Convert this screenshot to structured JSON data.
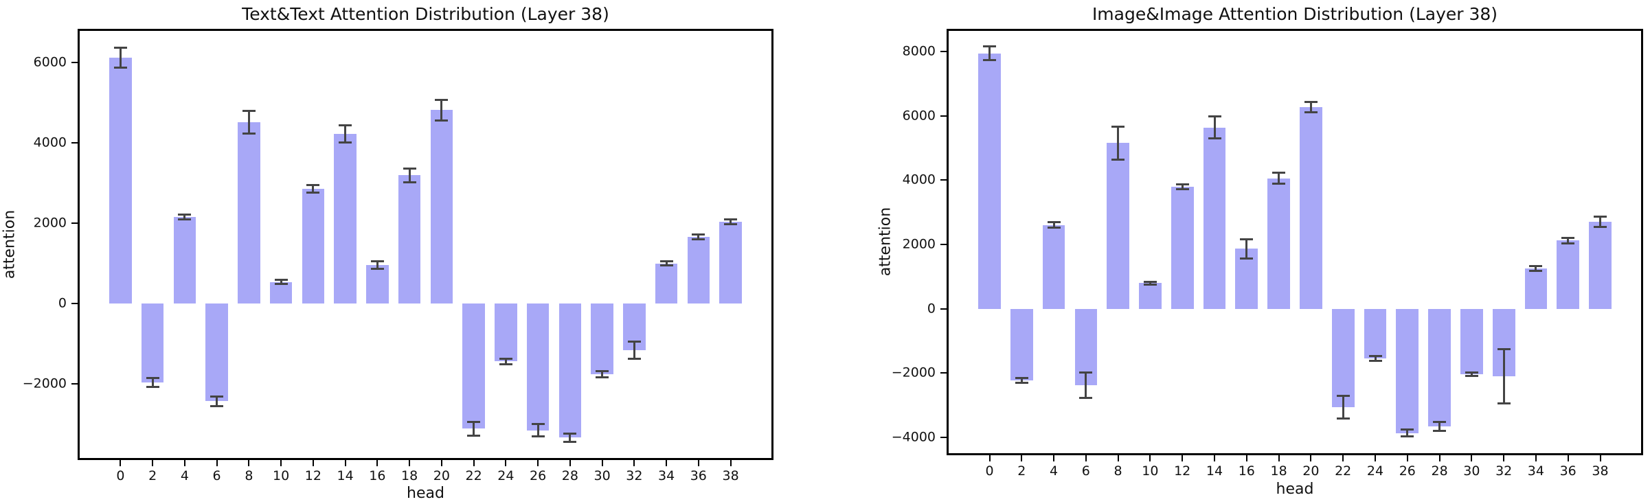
{
  "figure": {
    "background": "#ffffff",
    "bar_color": "#a8a8f7",
    "error_color": "#444444",
    "axis_color": "#000000"
  },
  "chart_data": [
    {
      "type": "bar",
      "title": "Text&Text Attention Distribution (Layer 38)",
      "xlabel": "head",
      "ylabel": "attention",
      "categories": [
        0,
        2,
        4,
        6,
        8,
        10,
        12,
        14,
        16,
        18,
        20,
        22,
        24,
        26,
        28,
        30,
        32,
        34,
        36,
        38
      ],
      "values": [
        6110,
        -1960,
        2160,
        -2430,
        4510,
        540,
        2850,
        4220,
        960,
        3190,
        4810,
        -3110,
        -1440,
        -3150,
        -3330,
        -1760,
        -1160,
        1000,
        1660,
        2030
      ],
      "errors": [
        250,
        110,
        60,
        120,
        280,
        45,
        95,
        215,
        95,
        170,
        255,
        170,
        75,
        155,
        105,
        80,
        210,
        45,
        65,
        60
      ],
      "bar_color": "#a8a8f7",
      "error_color": "#444444",
      "ylim": [
        -3890,
        6830
      ],
      "xlim": [
        -2.67,
        40.67
      ],
      "bar_width": 1.4,
      "ytick_values": [
        6000,
        4000,
        2000,
        0,
        -2000
      ],
      "ytick_labels": [
        "6000",
        "4000",
        "2000",
        "0",
        "−2000"
      ],
      "grid": false,
      "legend_position": "none"
    },
    {
      "type": "bar",
      "title": "Image&Image Attention Distribution (Layer 38)",
      "xlabel": "head",
      "ylabel": "attention",
      "categories": [
        0,
        2,
        4,
        6,
        8,
        10,
        12,
        14,
        16,
        18,
        20,
        22,
        24,
        26,
        28,
        30,
        32,
        34,
        36,
        38
      ],
      "values": [
        7950,
        -2230,
        2610,
        -2380,
        5160,
        800,
        3800,
        5640,
        1870,
        4060,
        6280,
        -3060,
        -1550,
        -3870,
        -3660,
        -2040,
        -2100,
        1250,
        2120,
        2700
      ],
      "errors": [
        210,
        80,
        80,
        400,
        510,
        45,
        70,
        340,
        300,
        165,
        165,
        350,
        70,
        110,
        140,
        60,
        850,
        70,
        90,
        160
      ],
      "bar_color": "#a8a8f7",
      "error_color": "#444444",
      "ylim": [
        -4560,
        8710
      ],
      "xlim": [
        -2.67,
        40.67
      ],
      "bar_width": 1.4,
      "ytick_values": [
        8000,
        6000,
        4000,
        2000,
        0,
        -2000,
        -4000
      ],
      "ytick_labels": [
        "8000",
        "6000",
        "4000",
        "2000",
        "0",
        "−2000",
        "−4000"
      ],
      "grid": false,
      "legend_position": "none"
    }
  ]
}
